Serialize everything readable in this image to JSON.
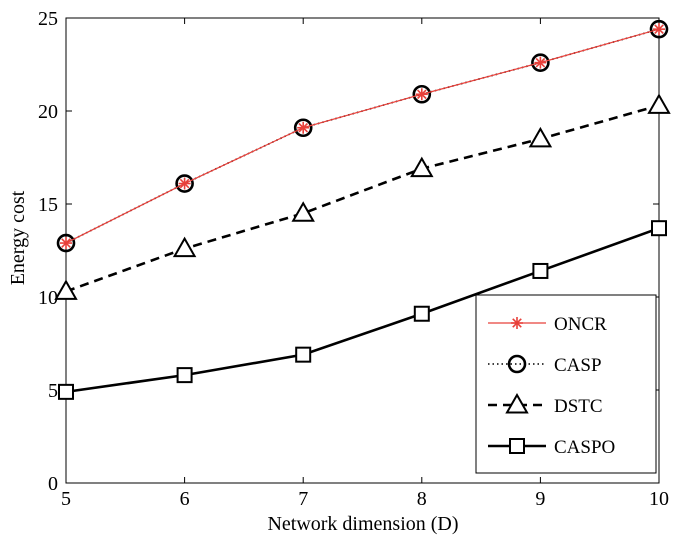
{
  "chart_data": {
    "type": "line",
    "title": "",
    "xlabel": "Network dimension (D)",
    "ylabel": "Energy cost",
    "xlim": [
      5,
      10
    ],
    "ylim": [
      0,
      25
    ],
    "xticks": [
      5,
      6,
      7,
      8,
      9,
      10
    ],
    "yticks": [
      0,
      5,
      10,
      15,
      20,
      25
    ],
    "grid": false,
    "legend_position": "bottom-right",
    "x": [
      5,
      6,
      7,
      8,
      9,
      10
    ],
    "series": [
      {
        "name": "ONCR",
        "values": [
          12.9,
          16.1,
          19.1,
          20.9,
          22.6,
          24.4
        ],
        "color": "#e8403a",
        "line": "solid-thin",
        "marker": "asterisk"
      },
      {
        "name": "CASP",
        "values": [
          12.9,
          16.1,
          19.1,
          20.9,
          22.6,
          24.4
        ],
        "color": "#000000",
        "line": "dotted",
        "marker": "circle"
      },
      {
        "name": "DSTC",
        "values": [
          10.3,
          12.6,
          14.5,
          16.9,
          18.5,
          20.3
        ],
        "color": "#000000",
        "line": "dashed",
        "marker": "triangle"
      },
      {
        "name": "CASPO",
        "values": [
          4.9,
          5.8,
          6.9,
          9.1,
          11.4,
          13.7
        ],
        "color": "#000000",
        "line": "solid",
        "marker": "square"
      }
    ]
  }
}
